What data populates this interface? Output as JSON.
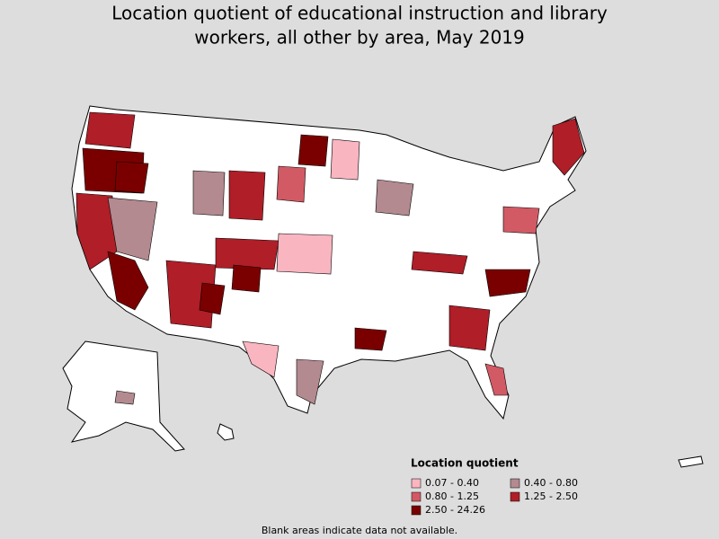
{
  "title_lines": [
    "Location quotient of educational instruction and library",
    "workers, all other by area, May 2019"
  ],
  "legend": {
    "title": "Location quotient",
    "items": [
      {
        "label": "0.07 - 0.40",
        "color": "#f9b5c0"
      },
      {
        "label": "0.40 - 0.80",
        "color": "#b38a90"
      },
      {
        "label": "0.80 - 1.25",
        "color": "#d25a64"
      },
      {
        "label": "1.25 - 2.50",
        "color": "#b01e28"
      },
      {
        "label": "2.50 - 24.26",
        "color": "#7a0000"
      }
    ]
  },
  "footnote": "Blank areas indicate data not available."
}
